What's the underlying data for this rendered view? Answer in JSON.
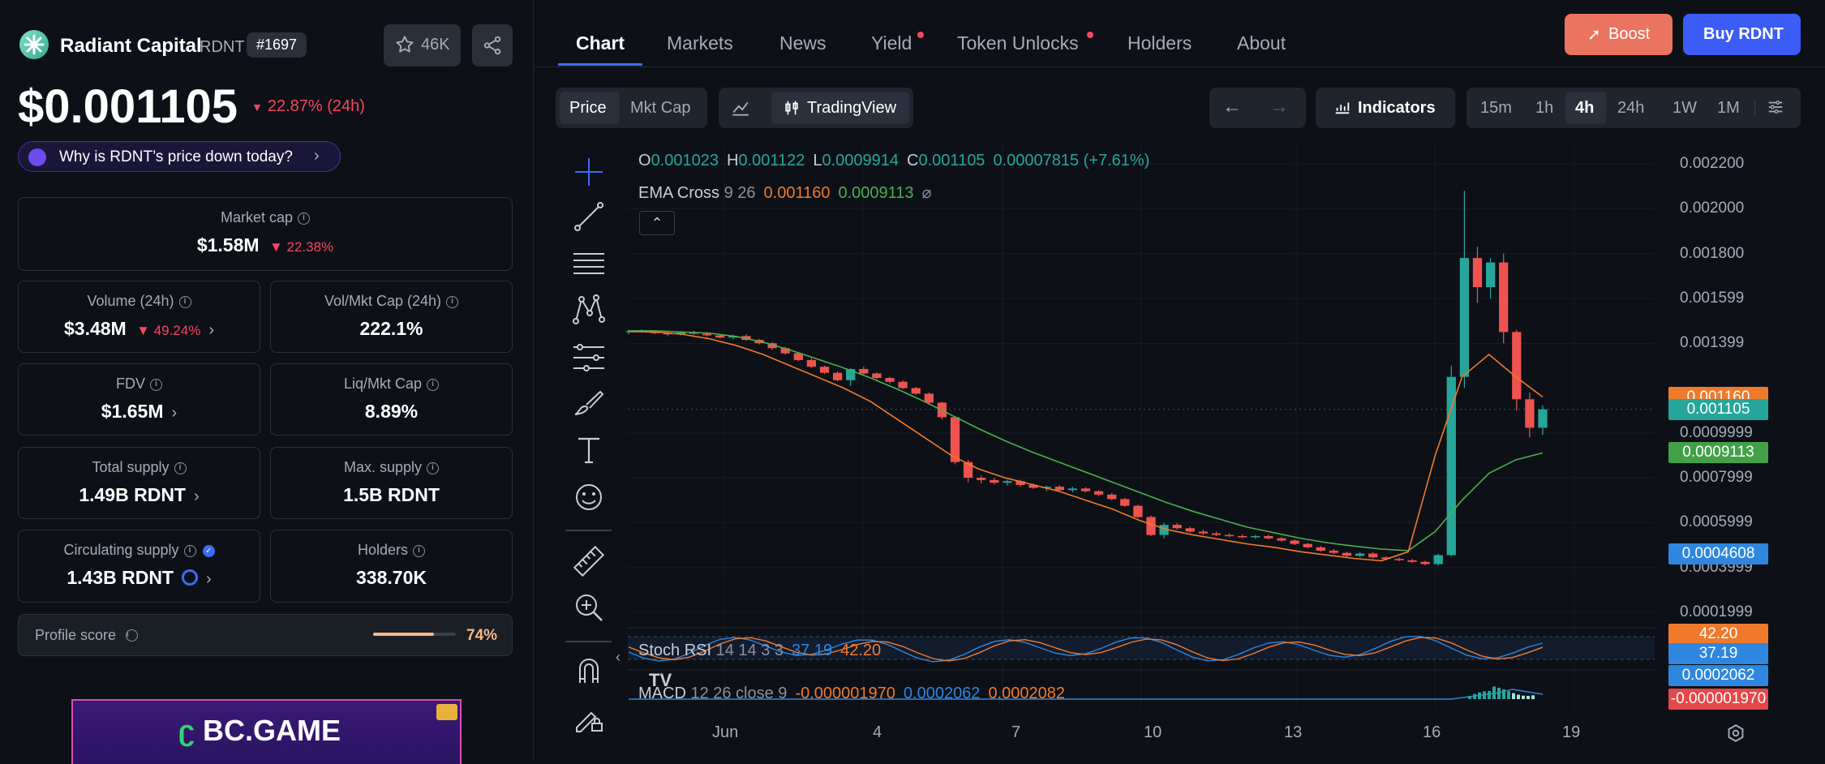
{
  "token": {
    "name": "Radiant Capital",
    "symbol": "RDNT",
    "rank": "#1697",
    "watch_count": "46K",
    "price": "$0.001105",
    "change_24h": "22.87% (24h)",
    "why_text": "Why is RDNT’s price down today?"
  },
  "stats": {
    "market_cap": {
      "label": "Market cap",
      "value": "$1.58M",
      "change": "22.38%"
    },
    "volume": {
      "label": "Volume (24h)",
      "value": "$3.48M",
      "change": "49.24%"
    },
    "vol_mkt": {
      "label": "Vol/Mkt Cap (24h)",
      "value": "222.1%"
    },
    "fdv": {
      "label": "FDV",
      "value": "$1.65M"
    },
    "liq_mkt": {
      "label": "Liq/Mkt Cap",
      "value": "8.89%"
    },
    "total_supply": {
      "label": "Total supply",
      "value": "1.49B RDNT"
    },
    "max_supply": {
      "label": "Max. supply",
      "value": "1.5B RDNT"
    },
    "circ_supply": {
      "label": "Circulating supply",
      "value": "1.43B RDNT"
    },
    "holders": {
      "label": "Holders",
      "value": "338.70K"
    }
  },
  "profile": {
    "label": "Profile score",
    "value": "74%",
    "fraction": 0.74
  },
  "ad": {
    "brand": "BC.GAME"
  },
  "tabs": [
    "Chart",
    "Markets",
    "News",
    "Yield",
    "Token Unlocks",
    "Holders",
    "About"
  ],
  "actions": {
    "boost": "Boost",
    "buy": "Buy RDNT"
  },
  "toolbar": {
    "price": "Price",
    "mktcap": "Mkt Cap",
    "tradingview": "TradingView",
    "indicators": "Indicators",
    "intervals": [
      "15m",
      "1h",
      "4h",
      "24h",
      "1W",
      "1M"
    ],
    "active_interval": "4h"
  },
  "legend": {
    "o_label": "O",
    "o": "0.001023",
    "h_label": "H",
    "h": "0.001122",
    "l_label": "L",
    "l": "0.0009914",
    "c_label": "C",
    "c": "0.001105",
    "chg": "0.00007815 (+7.61%)",
    "ema_name": "EMA Cross",
    "ema_params": "9 26",
    "ema_fast": "0.001160",
    "ema_slow": "0.0009113",
    "stoch_name": "Stoch RSI",
    "stoch_params": "14 14 3 3",
    "stoch_k": "37.19",
    "stoch_d": "42.20",
    "macd_name": "MACD",
    "macd_params": "12 26 close 9",
    "macd_hist": "-0.000001970",
    "macd_line": "0.0002062",
    "macd_signal": "0.0002082"
  },
  "chart_data": {
    "type": "candlestick",
    "y_ticks": [
      "0.002200",
      "0.002000",
      "0.001800",
      "0.001599",
      "0.001399",
      "0.0009999",
      "0.0007999",
      "0.0005999",
      "0.0003999",
      "0.0001999"
    ],
    "x_ticks": [
      "Jun",
      "4",
      "7",
      "10",
      "13",
      "16",
      "19"
    ],
    "ylim": [
      0.0001999,
      0.0022
    ],
    "price_tags": [
      {
        "label": "0.001160",
        "color": "#f07a2c"
      },
      {
        "label": "0.001105",
        "color": "#26a69a"
      },
      {
        "label": "0.0009113",
        "color": "#43a047"
      },
      {
        "label": "0.0004608",
        "color": "#2e86de"
      }
    ],
    "stoch_tags": [
      {
        "label": "42.20",
        "color": "#f07a2c"
      },
      {
        "label": "37.19",
        "color": "#2e86de"
      }
    ],
    "macd_tags": [
      {
        "label": "0.0002062",
        "color": "#2e86de"
      },
      {
        "label": "-0.000001970",
        "color": "#e54848"
      }
    ],
    "candles": [
      [
        0.00145,
        0.00146,
        0.00144,
        0.001455
      ],
      [
        0.001455,
        0.001462,
        0.001448,
        0.00145
      ],
      [
        0.00145,
        0.001458,
        0.00144,
        0.001445
      ],
      [
        0.001445,
        0.00145,
        0.001432,
        0.00144
      ],
      [
        0.00144,
        0.001452,
        0.001435,
        0.001448
      ],
      [
        0.001448,
        0.001455,
        0.001438,
        0.001442
      ],
      [
        0.001442,
        0.00145,
        0.00143,
        0.001435
      ],
      [
        0.001435,
        0.00144,
        0.00142,
        0.001425
      ],
      [
        0.001425,
        0.001438,
        0.001418,
        0.001432
      ],
      [
        0.001432,
        0.00144,
        0.00141,
        0.001415
      ],
      [
        0.001415,
        0.00142,
        0.001395,
        0.0014
      ],
      [
        0.0014,
        0.001405,
        0.00137,
        0.001378
      ],
      [
        0.001378,
        0.001385,
        0.00135,
        0.001355
      ],
      [
        0.001355,
        0.00136,
        0.00132,
        0.001325
      ],
      [
        0.001325,
        0.001332,
        0.00129,
        0.001295
      ],
      [
        0.001295,
        0.0013,
        0.001262,
        0.001268
      ],
      [
        0.001268,
        0.001275,
        0.00123,
        0.001235
      ],
      [
        0.001235,
        0.00129,
        0.00121,
        0.001285
      ],
      [
        0.001285,
        0.001295,
        0.00126,
        0.001265
      ],
      [
        0.001265,
        0.00127,
        0.00124,
        0.001245
      ],
      [
        0.001245,
        0.00125,
        0.00122,
        0.001228
      ],
      [
        0.001228,
        0.001235,
        0.001195,
        0.0012
      ],
      [
        0.0012,
        0.001205,
        0.00117,
        0.001175
      ],
      [
        0.001175,
        0.00118,
        0.00113,
        0.001135
      ],
      [
        0.001135,
        0.00114,
        0.00106,
        0.00107
      ],
      [
        0.00107,
        0.001075,
        0.00086,
        0.00087
      ],
      [
        0.00087,
        0.00088,
        0.00078,
        0.0008
      ],
      [
        0.0008,
        0.00081,
        0.000775,
        0.00079
      ],
      [
        0.00079,
        0.0008,
        0.00077,
        0.000778
      ],
      [
        0.000778,
        0.00079,
        0.000765,
        0.000785
      ],
      [
        0.000785,
        0.000792,
        0.00076,
        0.000768
      ],
      [
        0.000768,
        0.000775,
        0.00075,
        0.000755
      ],
      [
        0.000755,
        0.000765,
        0.00074,
        0.00076
      ],
      [
        0.00076,
        0.000768,
        0.00074,
        0.000745
      ],
      [
        0.000745,
        0.00076,
        0.000735,
        0.000752
      ],
      [
        0.000752,
        0.000758,
        0.000735,
        0.00074
      ],
      [
        0.00074,
        0.000745,
        0.00072,
        0.000725
      ],
      [
        0.000725,
        0.000732,
        0.0007,
        0.000705
      ],
      [
        0.000705,
        0.00071,
        0.00067,
        0.000675
      ],
      [
        0.000675,
        0.00068,
        0.00062,
        0.000625
      ],
      [
        0.000625,
        0.000632,
        0.00054,
        0.000545
      ],
      [
        0.000545,
        0.0006,
        0.00053,
        0.00059
      ],
      [
        0.00059,
        0.000598,
        0.00057,
        0.000575
      ],
      [
        0.000575,
        0.000582,
        0.000555,
        0.00056
      ],
      [
        0.00056,
        0.000568,
        0.000545,
        0.000552
      ],
      [
        0.000552,
        0.00056,
        0.00054,
        0.000545
      ],
      [
        0.000545,
        0.000552,
        0.000535,
        0.00054
      ],
      [
        0.00054,
        0.000548,
        0.00053,
        0.000535
      ],
      [
        0.000535,
        0.000545,
        0.000528,
        0.00054
      ],
      [
        0.00054,
        0.000546,
        0.000525,
        0.00053
      ],
      [
        0.00053,
        0.000536,
        0.000515,
        0.00052
      ],
      [
        0.00052,
        0.000526,
        0.0005,
        0.000505
      ],
      [
        0.000505,
        0.00051,
        0.000485,
        0.00049
      ],
      [
        0.00049,
        0.000496,
        0.00047,
        0.000475
      ],
      [
        0.000475,
        0.000482,
        0.00046,
        0.000465
      ],
      [
        0.000465,
        0.00047,
        0.000448,
        0.000452
      ],
      [
        0.000452,
        0.000468,
        0.000445,
        0.000462
      ],
      [
        0.000462,
        0.000468,
        0.00044,
        0.000445
      ],
      [
        0.000445,
        0.00045,
        0.000432,
        0.000438
      ],
      [
        0.000438,
        0.000445,
        0.000428,
        0.000432
      ],
      [
        0.000432,
        0.000438,
        0.00042,
        0.000425
      ],
      [
        0.000425,
        0.00043,
        0.00041,
        0.000415
      ],
      [
        0.000415,
        0.00046,
        0.000408,
        0.000455
      ],
      [
        0.000455,
        0.0013,
        0.00045,
        0.00125
      ],
      [
        0.00125,
        0.00208,
        0.0012,
        0.00178
      ],
      [
        0.00178,
        0.00183,
        0.00158,
        0.00165
      ],
      [
        0.00165,
        0.00178,
        0.0016,
        0.00176
      ],
      [
        0.00176,
        0.0018,
        0.0014,
        0.00145
      ],
      [
        0.00145,
        0.00146,
        0.0011,
        0.00115
      ],
      [
        0.00115,
        0.00118,
        0.00098,
        0.001023
      ],
      [
        0.001023,
        0.001122,
        0.000991,
        0.001105
      ]
    ],
    "ema_fast": [
      0.001452,
      0.00145,
      0.00144,
      0.00142,
      0.00139,
      0.00135,
      0.0013,
      0.00125,
      0.0012,
      0.00114,
      0.00106,
      0.00098,
      0.0009,
      0.00084,
      0.0008,
      0.00077,
      0.00074,
      0.0007,
      0.00066,
      0.00061,
      0.00057,
      0.000545,
      0.000525,
      0.000505,
      0.00049,
      0.00047,
      0.000455,
      0.00044,
      0.00043,
      0.00047,
      0.0009,
      0.00125,
      0.00135,
      0.00125,
      0.00116
    ],
    "ema_slow": [
      0.001455,
      0.001455,
      0.00145,
      0.001445,
      0.00143,
      0.001405,
      0.00137,
      0.00133,
      0.00129,
      0.001245,
      0.001195,
      0.00114,
      0.00108,
      0.00102,
      0.000965,
      0.000915,
      0.00087,
      0.000825,
      0.00078,
      0.000735,
      0.00069,
      0.00065,
      0.000615,
      0.00058,
      0.000555,
      0.00053,
      0.00051,
      0.000495,
      0.000482,
      0.000475,
      0.00056,
      0.0007,
      0.00082,
      0.00088,
      0.000911
    ]
  }
}
